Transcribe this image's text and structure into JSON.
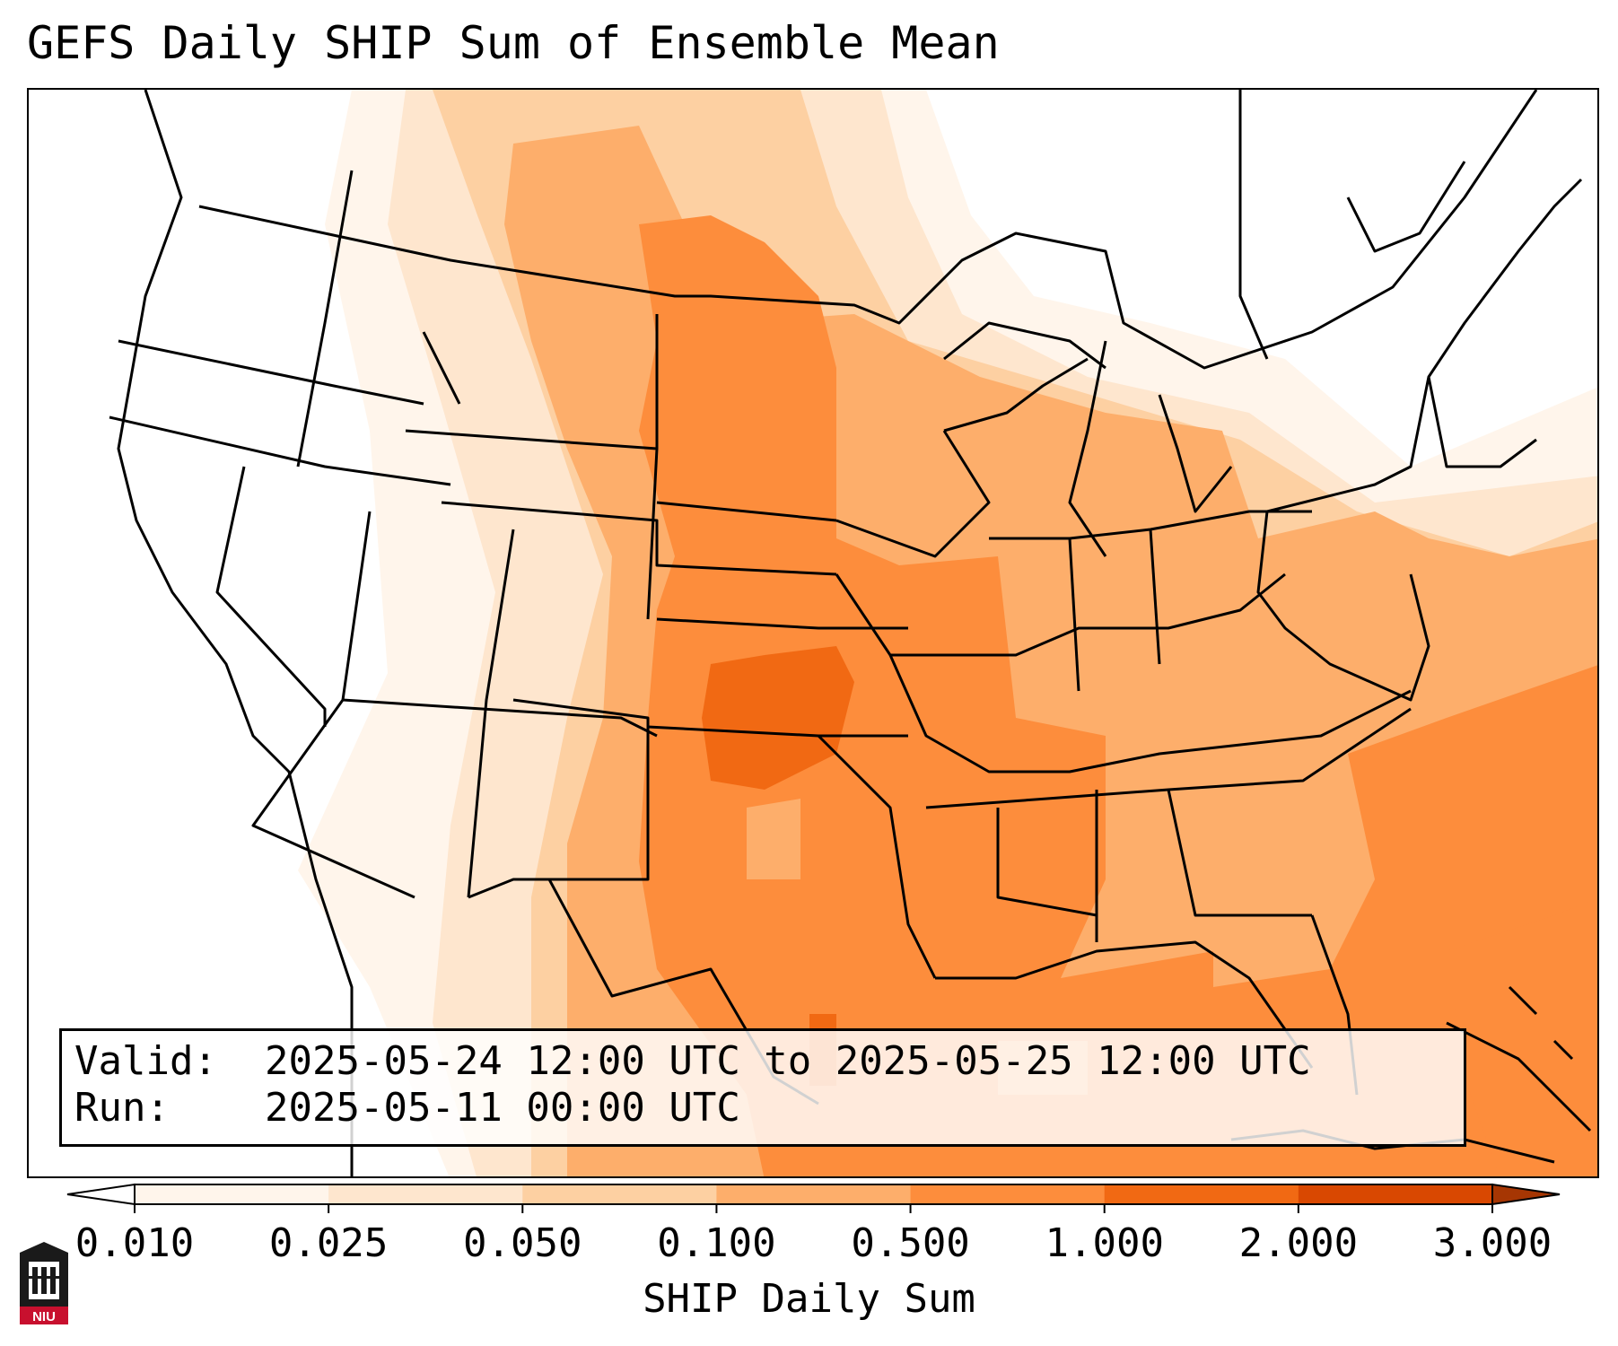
{
  "title": "GEFS Daily SHIP Sum of Ensemble Mean",
  "info": {
    "valid_label": "Valid:",
    "valid_value": "2025-05-24 12:00 UTC to 2025-05-25 12:00 UTC",
    "run_label": "Run:",
    "run_value": "2025-05-11 00:00 UTC"
  },
  "colorbar": {
    "title": "SHIP Daily Sum",
    "ticks": [
      "0.010",
      "0.025",
      "0.050",
      "0.100",
      "0.500",
      "1.000",
      "2.000",
      "3.000"
    ],
    "colors": [
      "#fff5eb",
      "#fee6ce",
      "#fdd0a2",
      "#fdae6b",
      "#fd8d3c",
      "#f16913",
      "#d94801"
    ],
    "under_color": "#ffffff",
    "over_color": "#a63603",
    "extend": "both"
  },
  "logo": {
    "text": "NIU",
    "color": "#c8102e"
  }
}
